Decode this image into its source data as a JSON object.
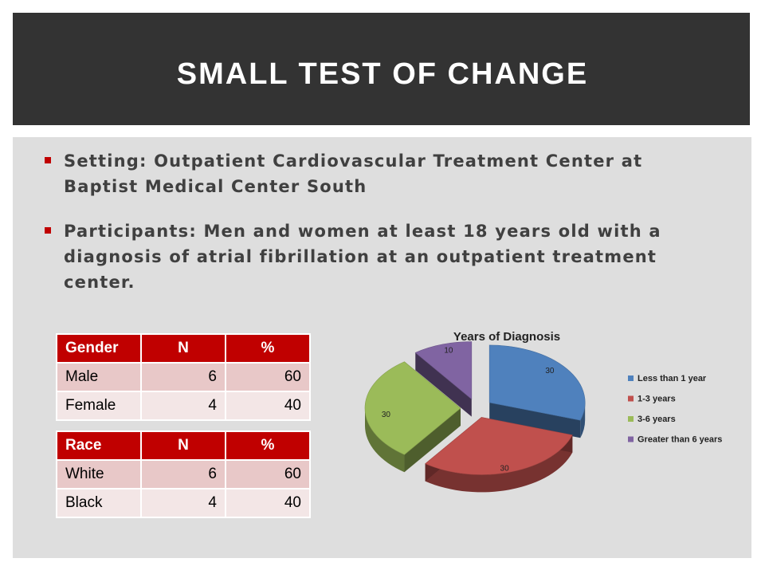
{
  "slide": {
    "title": "SMALL TEST OF CHANGE"
  },
  "bullets": [
    "Setting: Outpatient Cardiovascular Treatment Center at Baptist Medical Center South",
    "Participants: Men and women at least 18 years old with a diagnosis of atrial fibrillation at an outpatient treatment center."
  ],
  "colors": {
    "title_band": "#333333",
    "content_band": "#dedede",
    "accent_red": "#c00000"
  },
  "gender_table": {
    "headers": [
      "Gender",
      "N",
      "%"
    ],
    "rows": [
      [
        "Male",
        "6",
        "60"
      ],
      [
        "Female",
        "4",
        "40"
      ]
    ]
  },
  "race_table": {
    "headers": [
      "Race",
      "N",
      "%"
    ],
    "rows": [
      [
        "White",
        "6",
        "60"
      ],
      [
        "Black",
        "4",
        "40"
      ]
    ]
  },
  "chart_data": {
    "type": "pie",
    "title": "Years of Diagnosis",
    "categories": [
      "Less than 1 year",
      "1-3 years",
      "3-6 years",
      "Greater than 6 years"
    ],
    "values": [
      30,
      30,
      30,
      10
    ],
    "colors": [
      "#4f81bd",
      "#c0504d",
      "#9bbb59",
      "#8064a2"
    ],
    "legend_position": "right",
    "data_labels": [
      "30",
      "30",
      "30",
      "10"
    ]
  }
}
